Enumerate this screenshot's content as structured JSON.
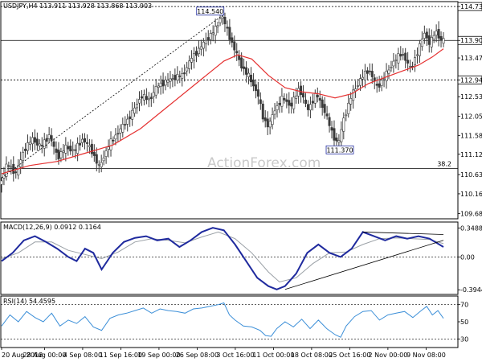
{
  "chart_data": {
    "type": "candlestick",
    "header": "USDJPY,H4  113.911 113.928 113.868 113.903",
    "watermark": "ActionForex.com",
    "price_axis": {
      "ticks": [
        "114.730",
        "113.903",
        "113.475",
        "112.940",
        "112.530",
        "112.050",
        "111.585",
        "111.125",
        "110.630",
        "110.160",
        "109.680"
      ],
      "ylim": [
        109.55,
        114.85
      ]
    },
    "current_price": "113.903",
    "resistance_level": "112.940",
    "resistance_top": "114.730",
    "support_level_label": "38.2",
    "annotations": [
      {
        "text": "114.540",
        "value": 114.54
      },
      {
        "text": "111.370",
        "value": 111.37
      }
    ],
    "price_path": [
      [
        0,
        110.35
      ],
      [
        3,
        110.9
      ],
      [
        6,
        110.65
      ],
      [
        9,
        111.25
      ],
      [
        12,
        111.5
      ],
      [
        15,
        111.3
      ],
      [
        18,
        111.6
      ],
      [
        21,
        111.05
      ],
      [
        24,
        111.3
      ],
      [
        27,
        111.2
      ],
      [
        30,
        111.5
      ],
      [
        33,
        111.25
      ],
      [
        36,
        110.8
      ],
      [
        39,
        111.3
      ],
      [
        42,
        111.6
      ],
      [
        45,
        111.85
      ],
      [
        48,
        112.15
      ],
      [
        51,
        112.55
      ],
      [
        54,
        112.45
      ],
      [
        57,
        112.8
      ],
      [
        60,
        112.9
      ],
      [
        63,
        113.0
      ],
      [
        66,
        113.05
      ],
      [
        69,
        113.45
      ],
      [
        72,
        113.7
      ],
      [
        75,
        113.95
      ],
      [
        78,
        114.2
      ],
      [
        80,
        114.54
      ],
      [
        82,
        114.15
      ],
      [
        84,
        113.8
      ],
      [
        87,
        113.3
      ],
      [
        90,
        113.0
      ],
      [
        93,
        112.6
      ],
      [
        95,
        112.0
      ],
      [
        97,
        111.8
      ],
      [
        99,
        112.2
      ],
      [
        102,
        112.5
      ],
      [
        105,
        112.3
      ],
      [
        108,
        112.75
      ],
      [
        111,
        112.2
      ],
      [
        114,
        112.6
      ],
      [
        117,
        112.2
      ],
      [
        120,
        111.6
      ],
      [
        122,
        111.37
      ],
      [
        124,
        112.0
      ],
      [
        127,
        112.6
      ],
      [
        130,
        112.95
      ],
      [
        133,
        113.2
      ],
      [
        136,
        112.75
      ],
      [
        139,
        113.05
      ],
      [
        142,
        113.4
      ],
      [
        145,
        113.6
      ],
      [
        148,
        113.2
      ],
      [
        151,
        113.7
      ],
      [
        153,
        114.1
      ],
      [
        155,
        113.8
      ],
      [
        157,
        114.15
      ],
      [
        159,
        113.9
      ]
    ],
    "ma_path": [
      [
        0,
        110.65
      ],
      [
        10,
        110.85
      ],
      [
        20,
        110.95
      ],
      [
        30,
        111.15
      ],
      [
        40,
        111.35
      ],
      [
        50,
        111.75
      ],
      [
        60,
        112.3
      ],
      [
        70,
        112.85
      ],
      [
        80,
        113.4
      ],
      [
        85,
        113.55
      ],
      [
        90,
        113.45
      ],
      [
        96,
        113.05
      ],
      [
        102,
        112.75
      ],
      [
        108,
        112.65
      ],
      [
        114,
        112.6
      ],
      [
        120,
        112.5
      ],
      [
        126,
        112.6
      ],
      [
        132,
        112.85
      ],
      [
        138,
        113.0
      ],
      [
        144,
        113.15
      ],
      [
        150,
        113.3
      ],
      [
        155,
        113.5
      ],
      [
        159,
        113.7
      ]
    ],
    "trendlines": [
      {
        "name": "upper",
        "from": [
          0,
          110.55
        ],
        "to": [
          80,
          114.54
        ]
      }
    ],
    "macd": {
      "label": "MACD(12,26,9) 0.0912 0.1164",
      "ticks": [
        "0.3488",
        "0.00",
        "-0.3944"
      ],
      "ylim": [
        -0.45,
        0.42
      ],
      "macd_path": [
        [
          0,
          -0.05
        ],
        [
          4,
          0.05
        ],
        [
          8,
          0.2
        ],
        [
          12,
          0.25
        ],
        [
          16,
          0.18
        ],
        [
          20,
          0.1
        ],
        [
          24,
          0.0
        ],
        [
          27,
          -0.05
        ],
        [
          30,
          0.1
        ],
        [
          33,
          0.05
        ],
        [
          36,
          -0.15
        ],
        [
          40,
          0.05
        ],
        [
          44,
          0.18
        ],
        [
          48,
          0.23
        ],
        [
          52,
          0.25
        ],
        [
          56,
          0.2
        ],
        [
          60,
          0.22
        ],
        [
          64,
          0.12
        ],
        [
          68,
          0.2
        ],
        [
          72,
          0.3
        ],
        [
          76,
          0.35
        ],
        [
          80,
          0.32
        ],
        [
          84,
          0.15
        ],
        [
          88,
          -0.05
        ],
        [
          92,
          -0.25
        ],
        [
          96,
          -0.35
        ],
        [
          99,
          -0.39
        ],
        [
          102,
          -0.35
        ],
        [
          106,
          -0.2
        ],
        [
          110,
          0.05
        ],
        [
          114,
          0.15
        ],
        [
          118,
          0.05
        ],
        [
          122,
          0.0
        ],
        [
          126,
          0.1
        ],
        [
          130,
          0.3
        ],
        [
          134,
          0.25
        ],
        [
          138,
          0.2
        ],
        [
          142,
          0.25
        ],
        [
          146,
          0.22
        ],
        [
          150,
          0.25
        ],
        [
          154,
          0.22
        ],
        [
          159,
          0.12
        ]
      ],
      "signal_path": [
        [
          0,
          -0.02
        ],
        [
          6,
          0.05
        ],
        [
          12,
          0.18
        ],
        [
          18,
          0.18
        ],
        [
          24,
          0.08
        ],
        [
          30,
          0.03
        ],
        [
          36,
          -0.02
        ],
        [
          42,
          0.06
        ],
        [
          48,
          0.18
        ],
        [
          54,
          0.22
        ],
        [
          60,
          0.2
        ],
        [
          66,
          0.17
        ],
        [
          72,
          0.24
        ],
        [
          78,
          0.3
        ],
        [
          84,
          0.22
        ],
        [
          90,
          0.05
        ],
        [
          96,
          -0.18
        ],
        [
          100,
          -0.3
        ],
        [
          106,
          -0.25
        ],
        [
          112,
          -0.08
        ],
        [
          118,
          0.05
        ],
        [
          124,
          0.06
        ],
        [
          130,
          0.15
        ],
        [
          136,
          0.22
        ],
        [
          142,
          0.23
        ],
        [
          148,
          0.22
        ],
        [
          154,
          0.21
        ],
        [
          159,
          0.16
        ]
      ],
      "trendlines": [
        {
          "name": "upper",
          "from": [
            130,
            0.3
          ],
          "to": [
            159,
            0.27
          ]
        },
        {
          "name": "lower",
          "from": [
            102,
            -0.39
          ],
          "to": [
            159,
            0.2
          ]
        }
      ]
    },
    "rsi": {
      "label": "RSI(14) 54.4595",
      "ticks": [
        "70",
        "50",
        "30"
      ],
      "ylim": [
        20,
        80
      ],
      "path": [
        [
          0,
          45
        ],
        [
          3,
          58
        ],
        [
          6,
          50
        ],
        [
          9,
          62
        ],
        [
          12,
          55
        ],
        [
          15,
          50
        ],
        [
          18,
          60
        ],
        [
          21,
          45
        ],
        [
          24,
          52
        ],
        [
          27,
          48
        ],
        [
          30,
          56
        ],
        [
          33,
          44
        ],
        [
          36,
          40
        ],
        [
          39,
          54
        ],
        [
          42,
          58
        ],
        [
          45,
          60
        ],
        [
          48,
          63
        ],
        [
          51,
          66
        ],
        [
          54,
          60
        ],
        [
          57,
          65
        ],
        [
          60,
          63
        ],
        [
          63,
          62
        ],
        [
          66,
          60
        ],
        [
          69,
          65
        ],
        [
          72,
          66
        ],
        [
          75,
          68
        ],
        [
          78,
          70
        ],
        [
          80,
          72
        ],
        [
          82,
          58
        ],
        [
          84,
          52
        ],
        [
          87,
          45
        ],
        [
          90,
          44
        ],
        [
          93,
          40
        ],
        [
          95,
          34
        ],
        [
          97,
          33
        ],
        [
          99,
          42
        ],
        [
          102,
          50
        ],
        [
          105,
          44
        ],
        [
          108,
          53
        ],
        [
          111,
          42
        ],
        [
          114,
          52
        ],
        [
          117,
          42
        ],
        [
          120,
          35
        ],
        [
          122,
          32
        ],
        [
          124,
          45
        ],
        [
          127,
          56
        ],
        [
          130,
          62
        ],
        [
          133,
          63
        ],
        [
          136,
          52
        ],
        [
          139,
          58
        ],
        [
          142,
          60
        ],
        [
          145,
          62
        ],
        [
          148,
          55
        ],
        [
          151,
          63
        ],
        [
          153,
          68
        ],
        [
          155,
          58
        ],
        [
          157,
          63
        ],
        [
          159,
          54
        ]
      ]
    },
    "x_axis": {
      "labels": [
        {
          "text": "20 Aug 2018",
          "index": 0
        },
        {
          "text": "28 Aug 00:00",
          "index": 18
        },
        {
          "text": "4 Sep 08:00",
          "index": 34
        },
        {
          "text": "11 Sep 16:00",
          "index": 50
        },
        {
          "text": "19 Sep 00:00",
          "index": 66
        },
        {
          "text": "26 Sep 08:00",
          "index": 82
        },
        {
          "text": "3 Oct 16:00",
          "index": 98
        },
        {
          "text": "11 Oct 00:00",
          "index": 114
        },
        {
          "text": "18 Oct 08:00",
          "index": 130
        },
        {
          "text": "25 Oct 16:00",
          "index": 146
        },
        {
          "text": "2 Nov 00:00",
          "index": 162
        },
        {
          "text": "9 Nov 08:00",
          "index": 178
        }
      ],
      "max_index": 190
    },
    "colors": {
      "candle": "#3a3a3a",
      "ma": "#e53030",
      "macd": "#1f2a9e",
      "signal": "#9aa0a6",
      "rsi": "#3c8fd8",
      "grid": "#000000",
      "trendline": "#000000"
    }
  }
}
